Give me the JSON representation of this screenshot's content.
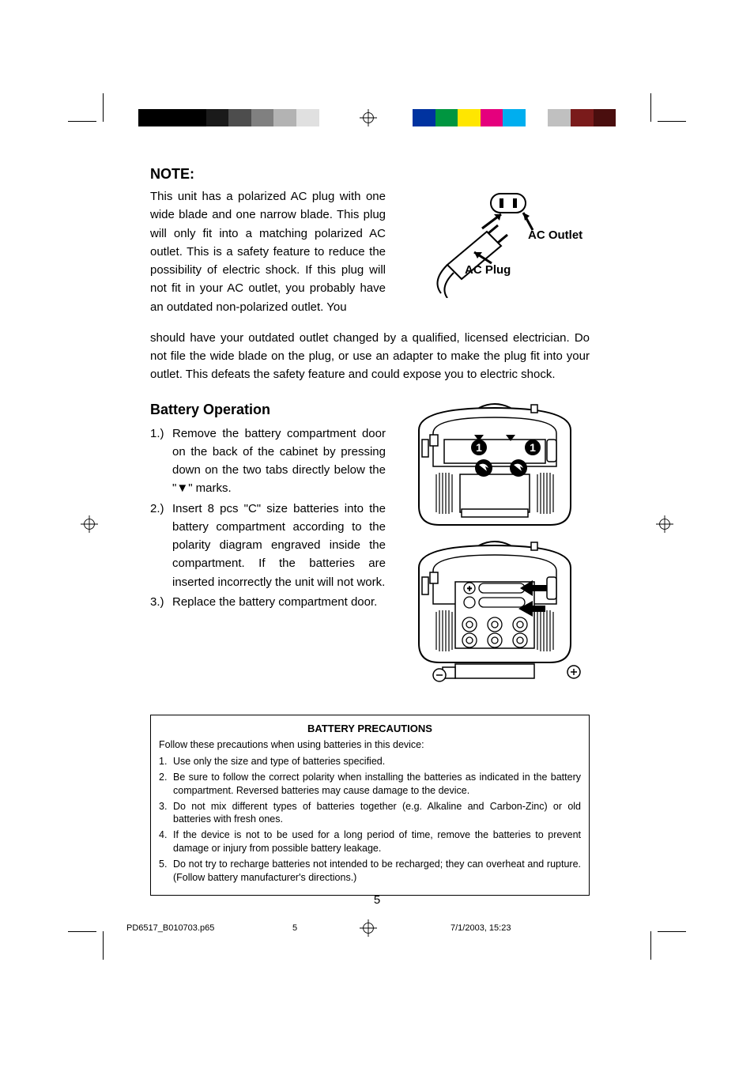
{
  "colorbar": {
    "left": [
      "#000000",
      "#000000",
      "#000000",
      "#1a1a1a",
      "#4d4d4d",
      "#808080",
      "#b3b3b3",
      "#e0e0e0",
      "#ffffff"
    ],
    "right": [
      "#0033a0",
      "#009640",
      "#ffe600",
      "#e5007d",
      "#00aeef",
      "#ffffff",
      "#c0c0c0",
      "#7a1b1b",
      "#4a0e0e"
    ]
  },
  "note": {
    "heading": "NOTE:",
    "para1": "This unit has a polarized AC plug with one wide blade and one narrow blade. This plug will only fit into a matching polarized AC outlet. This is a safety feature to reduce the possibility of electric shock. If this plug will not fit in your AC outlet, you probably have an outdated non-polarized outlet. You",
    "para2": "should have your outdated outlet changed by a qualified, licensed electrician. Do not file the wide blade on the plug, or use an adapter to make the plug fit into your outlet. This defeats the safety feature and could expose you to electric shock.",
    "fig": {
      "outlet": "AC Outlet",
      "plug": "AC Plug"
    }
  },
  "battery": {
    "heading": "Battery Operation",
    "items": [
      {
        "n": "1.)",
        "pre": "Remove the battery compartment door on the back of the cabinet by pressing down on the two tabs directly below the \"",
        "post": "\" marks."
      },
      {
        "n": "2.)",
        "pre": "Insert 8 pcs \"C\" size batteries into the battery compartment according to the polarity diagram engraved inside the compartment. If the batteries are inserted incorrectly the unit will not work.",
        "post": ""
      },
      {
        "n": "3.)",
        "pre": "Replace the battery compartment door.",
        "post": ""
      }
    ]
  },
  "precautions": {
    "title": "BATTERY PRECAUTIONS",
    "intro": "Follow these precautions when using batteries in this device:",
    "items": [
      "Use only the size and type of batteries specified.",
      "Be sure to follow the correct polarity when installing the batteries as indicated in the battery compartment. Reversed batteries may cause damage to the device.",
      "Do not mix different types of batteries together (e.g. Alkaline and Carbon-Zinc) or old batteries with fresh ones.",
      "If the device is not to be used for a long period of time, remove the batteries to prevent damage or injury from possible battery leakage.",
      "Do not try to recharge batteries not intended to be recharged; they can overheat and rupture. (Follow battery manufacturer's directions.)"
    ]
  },
  "pagenum": "5",
  "footer": {
    "file": "PD6517_B010703.p65",
    "page": "5",
    "date": "7/1/2003, 15:23"
  }
}
